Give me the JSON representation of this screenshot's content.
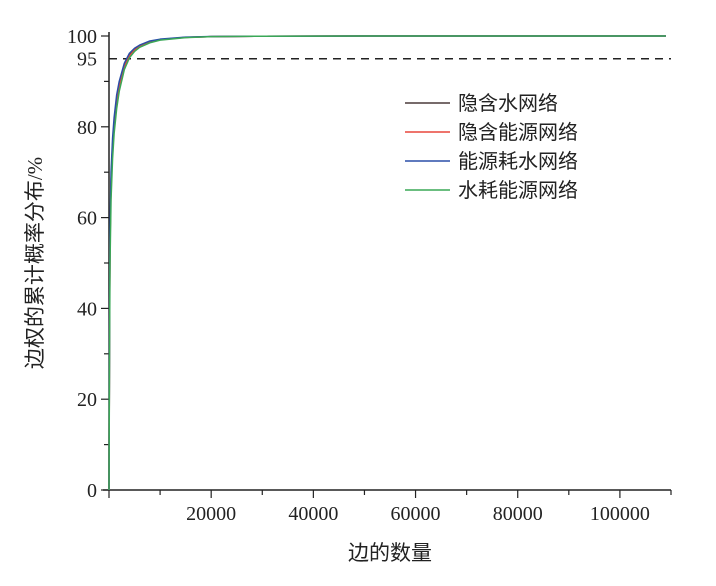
{
  "chart_data": {
    "type": "line",
    "xlabel": "边的数量",
    "ylabel": "边权的累计概率分布/%",
    "xlim": [
      0,
      110000
    ],
    "ylim": [
      0,
      100
    ],
    "xticks": [
      20000,
      40000,
      60000,
      80000,
      100000
    ],
    "xtick_labels": [
      "20000",
      "40000",
      "60000",
      "80000",
      "100000"
    ],
    "yticks": [
      0,
      20,
      40,
      60,
      80,
      95,
      100
    ],
    "ytick_labels": [
      "0",
      "20",
      "40",
      "60",
      "80",
      "95",
      "100"
    ],
    "grid": false,
    "legend_position": "top-right",
    "reference_line": {
      "y": 95,
      "style": "dashed",
      "color": "#222222"
    },
    "x": [
      0,
      100,
      200,
      400,
      700,
      1000,
      1500,
      2000,
      3000,
      4000,
      5000,
      6000,
      8000,
      10000,
      15000,
      20000,
      30000,
      50000,
      80000,
      109000
    ],
    "series": [
      {
        "name": "隐含水网络",
        "color": "#4a3a3a",
        "values": [
          0,
          35,
          55,
          68,
          76,
          81,
          86,
          89,
          93.5,
          95.8,
          97,
          97.8,
          98.7,
          99.2,
          99.7,
          99.85,
          99.95,
          100,
          100,
          100
        ]
      },
      {
        "name": "隐含能源网络",
        "color": "#e8463c",
        "values": [
          0,
          34,
          54,
          67,
          75.5,
          80.5,
          85.5,
          88.8,
          93.2,
          95.6,
          96.9,
          97.7,
          98.6,
          99.2,
          99.7,
          99.85,
          99.95,
          100,
          100,
          100
        ]
      },
      {
        "name": "能源耗水网络",
        "color": "#2a4fa8",
        "values": [
          0,
          37,
          57,
          70,
          77.5,
          82,
          87,
          90,
          94,
          96.2,
          97.3,
          98,
          98.9,
          99.3,
          99.75,
          99.9,
          99.95,
          100,
          100,
          100
        ]
      },
      {
        "name": "水耗能源网络",
        "color": "#3aa857",
        "values": [
          0,
          30,
          50,
          64,
          73,
          78.5,
          84,
          87.8,
          92.6,
          95.2,
          96.6,
          97.5,
          98.5,
          99.1,
          99.65,
          99.85,
          99.95,
          100,
          100,
          100
        ]
      }
    ]
  }
}
